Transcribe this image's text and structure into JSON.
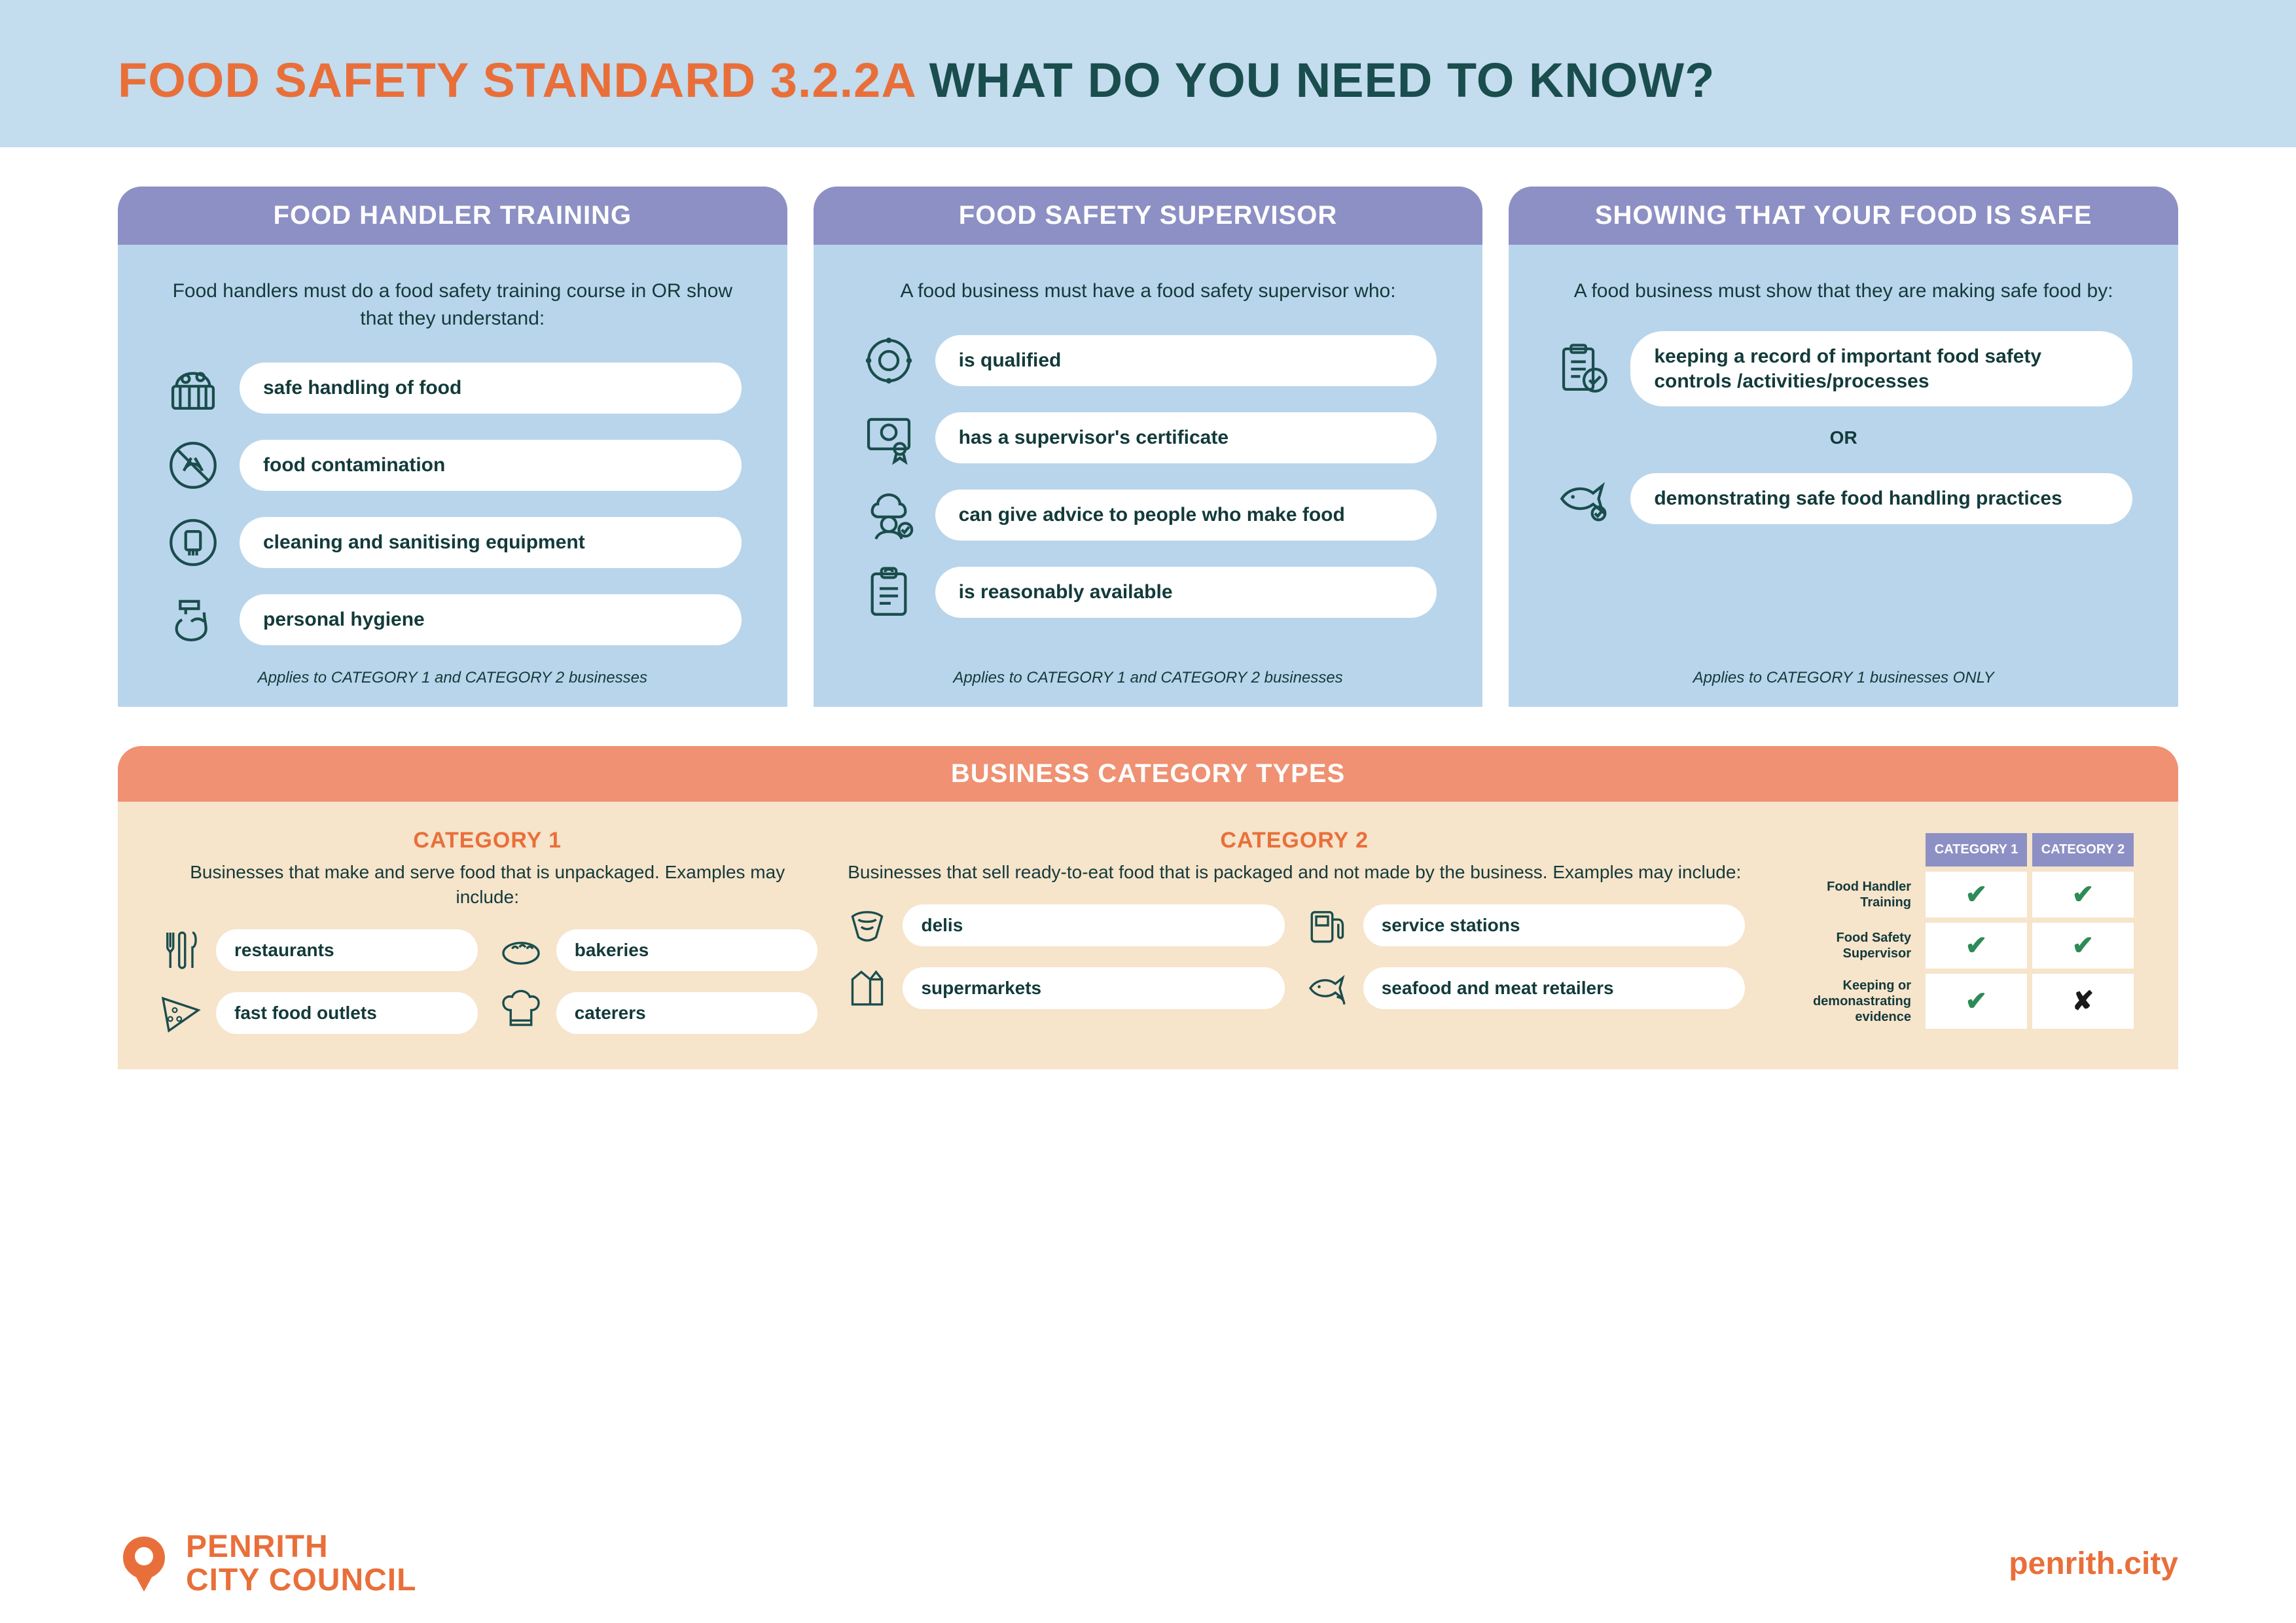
{
  "colors": {
    "hero_bg": "#c3dcee",
    "orange": "#e96f3a",
    "teal": "#1a4d4d",
    "purple": "#8d90c4",
    "col_bg": "#b9d5eb",
    "cat_header": "#ef9172",
    "cat_bg": "#f6e4cb",
    "text": "#133a3a",
    "check": "#2e8b57",
    "cross": "#1a1a1a"
  },
  "title": {
    "part1": "FOOD SAFETY STANDARD 3.2.2A",
    "part2": " WHAT DO YOU NEED TO KNOW?"
  },
  "columns": [
    {
      "header": "FOOD HANDLER TRAINING",
      "intro": "Food handlers must do a food safety training course in OR show that they understand:",
      "items": [
        {
          "icon": "food-basket",
          "label": "safe handling of food"
        },
        {
          "icon": "no-contamination",
          "label": "food contamination"
        },
        {
          "icon": "cleaning",
          "label": "cleaning and sanitising equipment"
        },
        {
          "icon": "handwash",
          "label": "personal hygiene"
        }
      ],
      "footnote": "Applies to CATEGORY 1 and CATEGORY 2 businesses"
    },
    {
      "header": "FOOD SAFETY SUPERVISOR",
      "intro": "A food business must have a food safety supervisor who:",
      "items": [
        {
          "icon": "badge",
          "label": "is qualified"
        },
        {
          "icon": "certificate",
          "label": "has a supervisor's certificate"
        },
        {
          "icon": "chef",
          "label": "can give advice to people who make food"
        },
        {
          "icon": "clipboard",
          "label": "is reasonably available"
        }
      ],
      "footnote": "Applies to CATEGORY 1 and CATEGORY 2 businesses"
    },
    {
      "header": "SHOWING THAT YOUR FOOD IS SAFE",
      "intro": "A food business must show that they are making safe food by:",
      "items": [
        {
          "icon": "record",
          "label": "keeping a record of important food safety controls /activities/processes"
        },
        {
          "or": "OR"
        },
        {
          "icon": "fish",
          "label": "demonstrating safe food handling practices"
        }
      ],
      "footnote": "Applies to CATEGORY 1 businesses ONLY"
    }
  ],
  "categories": {
    "header": "BUSINESS CATEGORY TYPES",
    "cat1": {
      "title": "CATEGORY 1",
      "desc": "Businesses that make and serve food that is unpackaged. Examples may include:",
      "items": [
        {
          "icon": "utensils",
          "label": "restaurants"
        },
        {
          "icon": "bread",
          "label": "bakeries"
        },
        {
          "icon": "pizza",
          "label": "fast food outlets"
        },
        {
          "icon": "chef-hat",
          "label": "caterers"
        }
      ]
    },
    "cat2": {
      "title": "CATEGORY 2",
      "desc": "Businesses that sell ready-to-eat food that is packaged and not made by the business.  Examples may include:",
      "items": [
        {
          "icon": "wrap",
          "label": "delis"
        },
        {
          "icon": "pump",
          "label": "service stations"
        },
        {
          "icon": "carton",
          "label": "supermarkets"
        },
        {
          "icon": "seafood",
          "label": "seafood and meat retailers"
        }
      ]
    },
    "matrix": {
      "col_headers": [
        "CATEGORY 1",
        "CATEGORY 2"
      ],
      "rows": [
        {
          "label": "Food Handler Training",
          "cells": [
            "check",
            "check"
          ]
        },
        {
          "label": "Food Safety Supervisor",
          "cells": [
            "check",
            "check"
          ]
        },
        {
          "label": "Keeping or demonastrating evidence",
          "cells": [
            "check",
            "cross"
          ]
        }
      ]
    }
  },
  "footer": {
    "org_line1": "PENRITH",
    "org_line2": "CITY COUNCIL",
    "url": "penrith.city"
  }
}
